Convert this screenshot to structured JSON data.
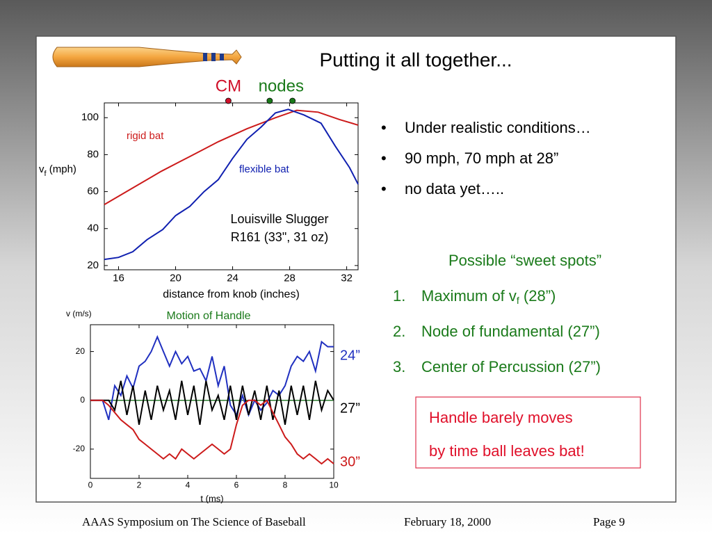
{
  "title": "Putting it all together...",
  "bullets": [
    "Under realistic conditions…",
    "90 mph, 70 mph at 28”",
    "no data yet….."
  ],
  "bullet_mark": "•",
  "sweet_spots": {
    "heading": "Possible “sweet spots”",
    "items": [
      {
        "number": "1.",
        "text": "Maximum of v",
        "sub": "f",
        "after": " (28”)"
      },
      {
        "number": "2.",
        "text": "Node of fundamental (27”)"
      },
      {
        "number": "3.",
        "text": "Center of Percussion (27”)"
      }
    ]
  },
  "note": [
    "Handle barely moves",
    "by time ball leaves bat!"
  ],
  "footer": {
    "left": "AAAS Symposium on The Science of Baseball",
    "center": "February 18, 2000",
    "right": "Page 9"
  },
  "chart_data": [
    {
      "type": "line",
      "xlabel": "distance from knob (inches)",
      "ylabel": {
        "text": "v",
        "sub": "f",
        "after": " (mph)"
      },
      "xlim": [
        15,
        32.8
      ],
      "ylim": [
        17.7,
        108
      ],
      "xticks": [
        16,
        20,
        24,
        28,
        32
      ],
      "yticks": [
        20,
        40,
        60,
        80,
        100
      ],
      "annotation": [
        "Louisville Slugger",
        "R161 (33\", 31 oz)"
      ],
      "points": [
        {
          "label": "CM",
          "color": "#d0102a",
          "x": [
            23.7
          ]
        },
        {
          "label": "nodes",
          "color": "#1a7a1a",
          "x": [
            26.6,
            28.2
          ]
        }
      ],
      "series": [
        {
          "name": "rigid bat",
          "color": "#cc1a1a",
          "x": [
            15,
            17,
            19,
            21,
            23,
            25,
            27,
            28.5,
            30,
            31.5,
            32.8
          ],
          "values": [
            53,
            62,
            71,
            79,
            87,
            94,
            100,
            104,
            103,
            99,
            96
          ]
        },
        {
          "name": "flexible bat",
          "color": "#1020b0",
          "x": [
            15,
            16,
            17,
            18,
            19.1,
            20,
            21,
            22,
            23,
            24,
            25,
            26,
            27,
            27.9,
            29,
            30.2,
            31.2,
            32.2,
            32.8
          ],
          "values": [
            23.3,
            24.4,
            27.5,
            34,
            39.5,
            47,
            52,
            60,
            66.5,
            78,
            88.3,
            95,
            102.6,
            104.5,
            101.5,
            97,
            84.6,
            73,
            64
          ]
        }
      ]
    },
    {
      "type": "line",
      "title": "Motion of Handle",
      "xlabel": "t (ms)",
      "ylabel": "v (m/s)",
      "xlim": [
        0,
        10
      ],
      "ylim": [
        -32,
        31
      ],
      "xticks": [
        0,
        2,
        4,
        6,
        8,
        10
      ],
      "yticks": [
        -20,
        0,
        20
      ],
      "reference_line": 0,
      "reference_color": "#2e7d32",
      "x": [
        0,
        0.25,
        0.5,
        0.75,
        1,
        1.25,
        1.5,
        1.75,
        2,
        2.25,
        2.5,
        2.75,
        3,
        3.25,
        3.5,
        3.75,
        4,
        4.25,
        4.5,
        4.75,
        5,
        5.25,
        5.5,
        5.75,
        6,
        6.25,
        6.5,
        6.75,
        7,
        7.25,
        7.5,
        7.75,
        8,
        8.25,
        8.5,
        8.75,
        9,
        9.25,
        9.5,
        9.75,
        10
      ],
      "series": [
        {
          "name": "24”",
          "color": "#2030c0",
          "values": [
            0,
            0,
            0,
            -8,
            6,
            2,
            10,
            5,
            14,
            16,
            20,
            26,
            20,
            14,
            20,
            15,
            18,
            12,
            13,
            8,
            18,
            6,
            14,
            -2,
            -6,
            2,
            -6,
            0,
            -4,
            -1,
            4,
            2,
            6,
            14,
            18,
            16,
            20,
            12,
            24,
            22,
            22
          ]
        },
        {
          "name": "27”",
          "color": "#000000",
          "values": [
            0,
            0,
            0,
            0,
            -4,
            8,
            -6,
            6,
            -10,
            4,
            -8,
            6,
            -4,
            4,
            -8,
            8,
            -6,
            6,
            -10,
            8,
            -4,
            2,
            -8,
            6,
            -8,
            6,
            -6,
            4,
            -8,
            6,
            -8,
            4,
            -10,
            6,
            -6,
            6,
            -8,
            8,
            -4,
            4,
            0
          ]
        },
        {
          "name": "30”",
          "color": "#cc1a1a",
          "values": [
            0,
            0,
            0,
            -2,
            -5,
            -8,
            -10,
            -12,
            -16,
            -18,
            -20,
            -22,
            -24,
            -22,
            -24,
            -20,
            -22,
            -24,
            -22,
            -20,
            -18,
            -20,
            -22,
            -20,
            -10,
            -2,
            0,
            0,
            -2,
            0,
            -5,
            -10,
            -15,
            -18,
            -22,
            -24,
            -22,
            -24,
            -26,
            -24,
            -26
          ]
        }
      ]
    }
  ]
}
